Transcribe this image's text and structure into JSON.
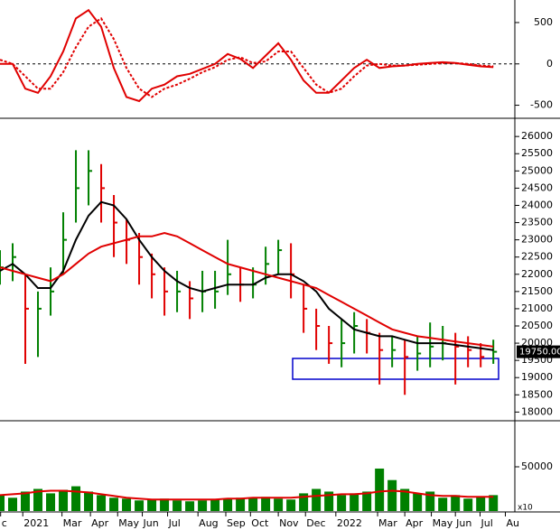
{
  "chart_data": [
    {
      "type": "line",
      "ylim": [
        -625,
        729
      ],
      "yticks": [
        500,
        0,
        -500
      ],
      "zero_line": true,
      "xlim": [
        0,
        81.4
      ],
      "x": [
        0,
        2,
        4,
        6,
        8,
        10,
        12,
        14,
        16,
        18,
        20,
        22,
        24,
        26,
        28,
        30,
        32,
        34,
        36,
        38,
        40,
        42,
        44,
        46,
        48,
        50,
        52,
        54,
        56,
        58,
        60,
        62,
        64,
        66,
        68,
        70,
        72,
        74,
        76,
        78
      ],
      "series": [
        {
          "color": "#e00000",
          "dash": false,
          "values": [
            0,
            0,
            -300,
            -350,
            -150,
            150,
            550,
            650,
            450,
            -50,
            -400,
            -450,
            -300,
            -250,
            -150,
            -120,
            -60,
            0,
            120,
            60,
            -50,
            100,
            250,
            50,
            -200,
            -350,
            -350,
            -200,
            -50,
            50,
            -50,
            -30,
            -20,
            0,
            10,
            20,
            10,
            -10,
            -30,
            -40
          ]
        },
        {
          "color": "#e00000",
          "dash": true,
          "values": [
            50,
            0,
            -150,
            -300,
            -300,
            -100,
            200,
            450,
            550,
            300,
            -50,
            -300,
            -400,
            -300,
            -250,
            -180,
            -100,
            -40,
            50,
            80,
            10,
            30,
            150,
            150,
            -50,
            -250,
            -350,
            -300,
            -150,
            -20,
            0,
            -20,
            -20,
            -10,
            0,
            10,
            10,
            0,
            -20,
            -30
          ]
        }
      ]
    },
    {
      "type": "ohlc",
      "ylim": [
        17800,
        26450
      ],
      "yticks": [
        18000,
        18500,
        19000,
        19500,
        20000,
        20500,
        21000,
        21500,
        22000,
        22500,
        23000,
        23500,
        24000,
        24500,
        25000,
        25500,
        26000
      ],
      "xlim": [
        0,
        81.4
      ],
      "up_color": "#008000",
      "down_color": "#e00000",
      "last_price": {
        "value": 19750,
        "label": "19750.00"
      },
      "x": [
        0,
        2,
        4,
        6,
        8,
        10,
        12,
        14,
        16,
        18,
        20,
        22,
        24,
        26,
        28,
        30,
        32,
        34,
        36,
        38,
        40,
        42,
        44,
        46,
        48,
        50,
        52,
        54,
        56,
        58,
        60,
        62,
        64,
        66,
        68,
        70,
        72,
        74,
        76,
        78
      ],
      "close": [
        22200,
        22500,
        21000,
        21000,
        21500,
        23000,
        24500,
        25000,
        24500,
        23500,
        23000,
        22500,
        22000,
        21500,
        21500,
        21300,
        21500,
        21500,
        22000,
        21700,
        21700,
        22300,
        22700,
        22000,
        21000,
        20500,
        20000,
        20000,
        20500,
        20300,
        19800,
        19800,
        19600,
        19700,
        19900,
        20000,
        19900,
        19800,
        19600,
        19750
      ],
      "high": [
        22700,
        22900,
        22000,
        21500,
        22200,
        23800,
        25600,
        25600,
        25200,
        24300,
        23600,
        23200,
        22600,
        22200,
        22100,
        21800,
        22100,
        22100,
        23000,
        22200,
        22200,
        22800,
        23000,
        22900,
        21700,
        21000,
        20500,
        20700,
        20900,
        20700,
        20300,
        20200,
        20100,
        20200,
        20600,
        20500,
        20300,
        20200,
        20000,
        20100
      ],
      "low": [
        21700,
        21800,
        19400,
        19600,
        20800,
        22000,
        23500,
        24000,
        23500,
        22500,
        22300,
        21700,
        21300,
        20800,
        20900,
        20700,
        20900,
        21000,
        21400,
        21200,
        21300,
        21700,
        22000,
        21300,
        20300,
        19800,
        19400,
        19300,
        19700,
        19700,
        18800,
        19300,
        18500,
        19200,
        19300,
        19500,
        18800,
        19300,
        19300,
        19400
      ],
      "series": [
        {
          "color": "#000000",
          "values": [
            22100,
            22300,
            22000,
            21600,
            21600,
            22100,
            23000,
            23700,
            24100,
            24000,
            23600,
            23000,
            22500,
            22100,
            21800,
            21600,
            21500,
            21600,
            21700,
            21700,
            21700,
            21900,
            22000,
            22000,
            21800,
            21500,
            21000,
            20700,
            20400,
            20300,
            20200,
            20200,
            20100,
            20000,
            20000,
            20000,
            19950,
            19900,
            19850,
            19800
          ]
        },
        {
          "color": "#e00000",
          "values": [
            22200,
            22100,
            22000,
            21900,
            21800,
            22000,
            22300,
            22600,
            22800,
            22900,
            23000,
            23100,
            23100,
            23200,
            23100,
            22900,
            22700,
            22500,
            22300,
            22200,
            22100,
            22000,
            21900,
            21800,
            21700,
            21600,
            21400,
            21200,
            21000,
            20800,
            20600,
            20400,
            20300,
            20200,
            20150,
            20100,
            20050,
            20000,
            19950,
            19900
          ]
        }
      ]
    },
    {
      "type": "bar",
      "ylim": [
        0,
        99000
      ],
      "yticks": [
        50000
      ],
      "xlim": [
        0,
        81.4
      ],
      "color": "#008000",
      "unit_label": "x10",
      "x": [
        0,
        2,
        4,
        6,
        8,
        10,
        12,
        14,
        16,
        18,
        20,
        22,
        24,
        26,
        28,
        30,
        32,
        34,
        36,
        38,
        40,
        42,
        44,
        46,
        48,
        50,
        52,
        54,
        56,
        58,
        60,
        62,
        64,
        66,
        68,
        70,
        72,
        74,
        76,
        78
      ],
      "values": [
        18000,
        15000,
        22000,
        25000,
        20000,
        24000,
        28000,
        22000,
        18000,
        15000,
        14000,
        12000,
        13000,
        14000,
        12000,
        11000,
        12000,
        13000,
        14000,
        15000,
        15000,
        16000,
        14000,
        13000,
        20000,
        25000,
        22000,
        18000,
        20000,
        22000,
        48000,
        35000,
        25000,
        20000,
        22000,
        15000,
        18000,
        14000,
        16000,
        18000
      ],
      "series": [
        {
          "color": "#e00000",
          "values": [
            18000,
            19000,
            20000,
            22000,
            23000,
            23000,
            22000,
            21000,
            19000,
            17000,
            15000,
            14000,
            13000,
            13000,
            13000,
            13000,
            13000,
            13000,
            14000,
            14000,
            15000,
            15000,
            15000,
            15000,
            16000,
            17000,
            18000,
            19000,
            19000,
            20000,
            22000,
            23000,
            22000,
            20000,
            18000,
            17000,
            17000,
            16000,
            16000,
            16000
          ]
        }
      ],
      "xticks": [
        {
          "value": 0.1,
          "label": "c"
        },
        {
          "value": 3.6,
          "label": "2021"
        },
        {
          "value": 9.8,
          "label": "Mar"
        },
        {
          "value": 14.3,
          "label": "Apr"
        },
        {
          "value": 18.6,
          "label": "May"
        },
        {
          "value": 22.5,
          "label": "Jun"
        },
        {
          "value": 26.5,
          "label": "Jul"
        },
        {
          "value": 31.3,
          "label": "Aug"
        },
        {
          "value": 35.7,
          "label": "Sep"
        },
        {
          "value": 39.6,
          "label": "Oct"
        },
        {
          "value": 44,
          "label": "Nov"
        },
        {
          "value": 48.3,
          "label": "Dec"
        },
        {
          "value": 53.1,
          "label": "2022"
        },
        {
          "value": 59.7,
          "label": "Mar"
        },
        {
          "value": 64,
          "label": "Apr"
        },
        {
          "value": 68.2,
          "label": "May"
        },
        {
          "value": 72,
          "label": "Jun"
        },
        {
          "value": 75.9,
          "label": "Jul"
        },
        {
          "value": 79.9,
          "label": "Au"
        }
      ]
    }
  ]
}
